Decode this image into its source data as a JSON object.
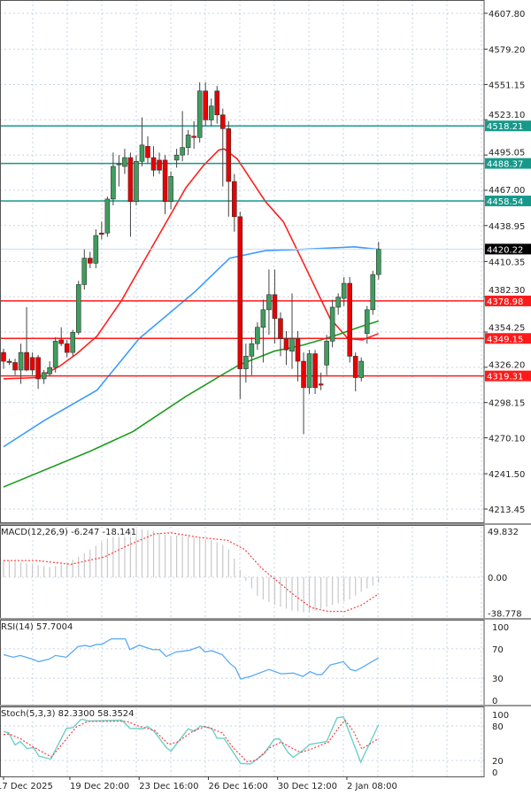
{
  "chart_data": {
    "type": "candlestick",
    "price_axis": {
      "ticks": [
        "4607.80",
        "4579.20",
        "4551.15",
        "4523.10",
        "4495.05",
        "4467.00",
        "4438.95",
        "4410.35",
        "4382.30",
        "4354.25",
        "4326.20",
        "4298.15",
        "4270.10",
        "4241.50",
        "4213.45"
      ],
      "range": [
        4213.45,
        4607.8
      ]
    },
    "time_axis": {
      "labels": [
        "17 Dec 2025",
        "19 Dec 20:00",
        "23 Dec 16:00",
        "26 Dec 16:00",
        "30 Dec 12:00",
        "2 Jan 08:00"
      ],
      "label_bars": [
        0,
        11.5,
        23.5,
        35.5,
        47.5,
        59.5
      ]
    },
    "grid": true,
    "current_price": {
      "value": "4420.22",
      "color": "#000000"
    },
    "levels": [
      {
        "value": "4518.21",
        "color": "#16998b"
      },
      {
        "value": "4488.37",
        "color": "#16998b"
      },
      {
        "value": "4458.54",
        "color": "#16998b"
      },
      {
        "value": "4378.98",
        "color": "#ff1a1a"
      },
      {
        "value": "4349.15",
        "color": "#ff1a1a"
      },
      {
        "value": "4319.31",
        "color": "#ff1a1a"
      }
    ],
    "candles_ohlc": [
      [
        4338,
        4341,
        4325,
        4331
      ],
      [
        4331,
        4333,
        4328,
        4330
      ],
      [
        4330,
        4333,
        4320,
        4324
      ],
      [
        4324,
        4345,
        4313,
        4338
      ],
      [
        4338,
        4374,
        4323,
        4324
      ],
      [
        4334,
        4338,
        4320,
        4324
      ],
      [
        4334,
        4336,
        4309,
        4317
      ],
      [
        4317,
        4324,
        4313,
        4322
      ],
      [
        4321,
        4331,
        4319,
        4326
      ],
      [
        4326,
        4350,
        4322,
        4347
      ],
      [
        4348,
        4358,
        4343,
        4345
      ],
      [
        4345,
        4348,
        4334,
        4338
      ],
      [
        4338,
        4356,
        4335,
        4354
      ],
      [
        4354,
        4395,
        4352,
        4392
      ],
      [
        4392,
        4420,
        4388,
        4413
      ],
      [
        4413,
        4418,
        4405,
        4409
      ],
      [
        4409,
        4436,
        4405,
        4431
      ],
      [
        4433,
        4442,
        4428,
        4432
      ],
      [
        4433,
        4462,
        4430,
        4460
      ],
      [
        4460,
        4497,
        4455,
        4486
      ],
      [
        4488,
        4495,
        4470,
        4488
      ],
      [
        4486,
        4500,
        4480,
        4493
      ],
      [
        4493,
        4497,
        4430,
        4458
      ],
      [
        4458,
        4495,
        4455,
        4490
      ],
      [
        4490,
        4525,
        4486,
        4503
      ],
      [
        4502,
        4510,
        4488,
        4493
      ],
      [
        4493,
        4502,
        4478,
        4483
      ],
      [
        4491,
        4497,
        4480,
        4483
      ],
      [
        4491,
        4495,
        4448,
        4458
      ],
      [
        4458,
        4482,
        4452,
        4478
      ],
      [
        4491,
        4500,
        4485,
        4495
      ],
      [
        4495,
        4530,
        4490,
        4501
      ],
      [
        4501,
        4515,
        4495,
        4511
      ],
      [
        4510,
        4522,
        4500,
        4509
      ],
      [
        4509,
        4553,
        4505,
        4546
      ],
      [
        4546,
        4553,
        4518,
        4523
      ],
      [
        4523,
        4540,
        4518,
        4534
      ],
      [
        4546,
        4550,
        4520,
        4527
      ],
      [
        4527,
        4532,
        4470,
        4516
      ],
      [
        4516,
        4522,
        4446,
        4474
      ],
      [
        4474,
        4480,
        4434,
        4446
      ],
      [
        4446,
        4450,
        4301,
        4325
      ],
      [
        4325,
        4345,
        4314,
        4335
      ],
      [
        4335,
        4350,
        4320,
        4345
      ],
      [
        4345,
        4362,
        4340,
        4358
      ],
      [
        4358,
        4380,
        4330,
        4372
      ],
      [
        4372,
        4404,
        4352,
        4384
      ],
      [
        4384,
        4404,
        4345,
        4365
      ],
      [
        4365,
        4370,
        4335,
        4349
      ],
      [
        4349,
        4355,
        4328,
        4340
      ],
      [
        4339,
        4385,
        4325,
        4349
      ],
      [
        4349,
        4355,
        4315,
        4331
      ],
      [
        4331,
        4338,
        4273,
        4310
      ],
      [
        4310,
        4340,
        4305,
        4337
      ],
      [
        4337,
        4340,
        4305,
        4310
      ],
      [
        4313,
        4322,
        4308,
        4312
      ],
      [
        4328,
        4352,
        4320,
        4347
      ],
      [
        4347,
        4380,
        4342,
        4374
      ],
      [
        4374,
        4385,
        4368,
        4382
      ],
      [
        4381,
        4398,
        4375,
        4393
      ],
      [
        4393,
        4398,
        4330,
        4335
      ],
      [
        4335,
        4338,
        4307,
        4318
      ],
      [
        4318,
        4334,
        4315,
        4331
      ],
      [
        4353,
        4375,
        4345,
        4372
      ],
      [
        4372,
        4403,
        4368,
        4400
      ],
      [
        4400,
        4426,
        4396,
        4420
      ]
    ],
    "moving_averages": [
      {
        "color": "#ff2020",
        "points": [
          [
            0,
            4317
          ],
          [
            6,
            4318
          ],
          [
            9.7,
            4327
          ],
          [
            12.7,
            4337
          ],
          [
            16.2,
            4351
          ],
          [
            20.4,
            4379
          ],
          [
            25,
            4416
          ],
          [
            28.5,
            4444
          ],
          [
            31.6,
            4469
          ],
          [
            34.7,
            4487
          ],
          [
            37.3,
            4499
          ],
          [
            38.2,
            4500
          ],
          [
            40.5,
            4492
          ],
          [
            45.4,
            4458
          ],
          [
            48.5,
            4442
          ],
          [
            52,
            4409
          ],
          [
            54.6,
            4384
          ],
          [
            56.6,
            4365
          ],
          [
            59.7,
            4349
          ],
          [
            62.2,
            4348
          ],
          [
            65,
            4353
          ]
        ]
      },
      {
        "color": "#3d9bff",
        "points": [
          [
            0,
            4263
          ],
          [
            7.1,
            4284
          ],
          [
            16.2,
            4308
          ],
          [
            23.5,
            4349
          ],
          [
            33.1,
            4386
          ],
          [
            39.2,
            4413
          ],
          [
            45.4,
            4419
          ],
          [
            51.6,
            4420
          ],
          [
            60.8,
            4422
          ],
          [
            65,
            4420
          ]
        ]
      },
      {
        "color": "#1f9a1f",
        "points": [
          [
            0,
            4231
          ],
          [
            14.8,
            4259
          ],
          [
            22.4,
            4275
          ],
          [
            31.6,
            4303
          ],
          [
            37.8,
            4320
          ],
          [
            40.8,
            4328
          ],
          [
            46.9,
            4339
          ],
          [
            52,
            4344
          ],
          [
            57.2,
            4351
          ],
          [
            62.2,
            4359
          ],
          [
            65,
            4363
          ]
        ]
      }
    ],
    "macd": {
      "title": "MACD(12,26,9) -6.247 -18.141",
      "ticks": [
        "49.832",
        "0.00",
        "-38.778"
      ],
      "histogram": [
        18,
        18,
        17,
        16,
        15,
        14,
        13,
        12,
        11,
        12,
        14,
        16,
        19,
        22,
        26,
        30,
        34,
        38,
        42,
        45,
        48,
        50,
        51,
        52,
        52,
        51,
        50,
        48,
        46,
        45,
        45,
        44,
        44,
        43,
        42,
        41,
        40,
        38,
        35,
        30,
        20,
        8,
        -4,
        -12,
        -20,
        -24,
        -27,
        -30,
        -32,
        -34,
        -36,
        -37,
        -38,
        -38,
        -36,
        -34,
        -32,
        -30,
        -28,
        -26,
        -24,
        -20,
        -16,
        -12,
        -9,
        -6
      ],
      "signal": [
        [
          0,
          18
        ],
        [
          5.8,
          18
        ],
        [
          11.7,
          14
        ],
        [
          17.5,
          22
        ],
        [
          21.4,
          34
        ],
        [
          26.2,
          47
        ],
        [
          29.1,
          48
        ],
        [
          34,
          43
        ],
        [
          38.8,
          40
        ],
        [
          41.8,
          30
        ],
        [
          44.7,
          10
        ],
        [
          46.6,
          0
        ],
        [
          50.5,
          -20
        ],
        [
          53.4,
          -33
        ],
        [
          56.3,
          -37
        ],
        [
          59.2,
          -37
        ],
        [
          62.1,
          -30
        ],
        [
          65,
          -18
        ]
      ]
    },
    "rsi": {
      "title": "RSI(14) 57.7004",
      "ticks": [
        "100",
        "70",
        "30",
        "0"
      ],
      "line": [
        [
          0,
          62
        ],
        [
          1.7,
          58.6
        ],
        [
          2.9,
          61
        ],
        [
          5,
          56
        ],
        [
          6.1,
          52.5
        ],
        [
          7.9,
          56
        ],
        [
          9,
          61
        ],
        [
          10.9,
          58.6
        ],
        [
          12.9,
          73
        ],
        [
          14.1,
          74.6
        ],
        [
          15,
          73
        ],
        [
          16.1,
          76
        ],
        [
          17,
          76
        ],
        [
          18.7,
          83.6
        ],
        [
          21.1,
          83.6
        ],
        [
          21.9,
          69
        ],
        [
          23.5,
          75
        ],
        [
          25.8,
          69
        ],
        [
          27,
          69
        ],
        [
          28.2,
          59.6
        ],
        [
          29.9,
          65.7
        ],
        [
          32.2,
          68
        ],
        [
          34,
          73
        ],
        [
          34.9,
          65.7
        ],
        [
          36.1,
          67.5
        ],
        [
          37.9,
          62
        ],
        [
          39.3,
          49.6
        ],
        [
          40.2,
          44
        ],
        [
          41.1,
          29
        ],
        [
          42.8,
          32.5
        ],
        [
          46,
          42
        ],
        [
          48.1,
          36
        ],
        [
          50.2,
          37
        ],
        [
          51.9,
          32.5
        ],
        [
          53.1,
          39
        ],
        [
          54.3,
          35
        ],
        [
          55.2,
          35
        ],
        [
          56.6,
          48
        ],
        [
          58.9,
          52.5
        ],
        [
          60.1,
          42
        ],
        [
          61,
          40
        ],
        [
          62,
          44
        ],
        [
          65,
          57.7
        ]
      ]
    },
    "stoch": {
      "title": "Stoch(5,3,3) 82.3300 58.3524",
      "ticks": [
        "100",
        "80",
        "20",
        "0"
      ],
      "main": [
        [
          0,
          70.5
        ],
        [
          0.9,
          68
        ],
        [
          2,
          47
        ],
        [
          2.9,
          53
        ],
        [
          4.1,
          40.5
        ],
        [
          5.2,
          42.7
        ],
        [
          6.1,
          27.6
        ],
        [
          8.2,
          22.5
        ],
        [
          10.9,
          75.7
        ],
        [
          12,
          77
        ],
        [
          13.5,
          92
        ],
        [
          14.7,
          88.6
        ],
        [
          20.5,
          90
        ],
        [
          21.9,
          75.7
        ],
        [
          24.1,
          75
        ],
        [
          25,
          79
        ],
        [
          26.1,
          70.5
        ],
        [
          28.2,
          42.7
        ],
        [
          29,
          36
        ],
        [
          32,
          75
        ],
        [
          33.1,
          70.5
        ],
        [
          34.1,
          80
        ],
        [
          36.1,
          75.7
        ],
        [
          37,
          58.5
        ],
        [
          38.2,
          58.5
        ],
        [
          41.1,
          14.8
        ],
        [
          42.8,
          14
        ],
        [
          45.2,
          32
        ],
        [
          46.9,
          57
        ],
        [
          47.8,
          57.7
        ],
        [
          49.3,
          34
        ],
        [
          50.2,
          25.5
        ],
        [
          51.7,
          36
        ],
        [
          53.1,
          48
        ],
        [
          56,
          53
        ],
        [
          57.8,
          94
        ],
        [
          58.9,
          96
        ],
        [
          61.9,
          17
        ],
        [
          65,
          82.3
        ]
      ],
      "signal": [
        [
          0,
          65
        ],
        [
          1,
          66
        ],
        [
          2.9,
          58
        ],
        [
          4.9,
          45
        ],
        [
          8.3,
          26
        ],
        [
          10.7,
          55
        ],
        [
          12.6,
          78
        ],
        [
          14.6,
          88
        ],
        [
          21.4,
          88
        ],
        [
          23.3,
          80
        ],
        [
          26.2,
          72
        ],
        [
          28.6,
          48
        ],
        [
          30.1,
          52
        ],
        [
          33,
          72
        ],
        [
          35,
          79
        ],
        [
          37.9,
          68
        ],
        [
          39.8,
          42
        ],
        [
          42.2,
          18
        ],
        [
          43.7,
          20
        ],
        [
          46.1,
          42
        ],
        [
          48.1,
          52
        ],
        [
          49.5,
          44
        ],
        [
          51.5,
          34
        ],
        [
          53.4,
          40
        ],
        [
          56.3,
          52
        ],
        [
          58.3,
          80
        ],
        [
          59.2,
          90
        ],
        [
          60.7,
          70
        ],
        [
          62.1,
          40
        ],
        [
          65,
          58.4
        ]
      ]
    },
    "colors": {
      "bull": "#3f9d5e",
      "bear": "#e80000",
      "macd_hist": "#c8c8c8",
      "signal": "#ff3b3b",
      "rsi": "#5aaaf5",
      "stoch_main": "#6cd0c8",
      "stoch_signal": "#ff3b3b"
    }
  }
}
